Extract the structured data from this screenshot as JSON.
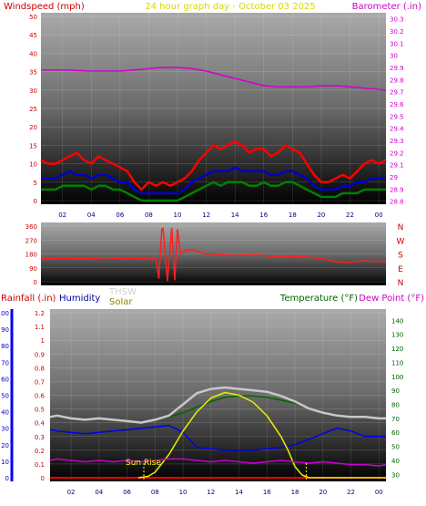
{
  "colors": {
    "wind_gust": "#ff0000",
    "wind_avg": "#0000cc",
    "wind_low": "#008000",
    "barometer": "#d000d0",
    "title": "#e8e800",
    "direction": "#ff2020",
    "rain": "#ff0000",
    "humidity": "#0000ee",
    "solar": "#eeee00",
    "thsw": "#c8c8c8",
    "temperature": "#006600",
    "dew_point": "#cc00cc",
    "sunrise_marker": "#ffff00"
  },
  "chart_data": [
    {
      "type": "line",
      "panel": "wind-barometer",
      "title": "24 hour graph day - October 03 2025",
      "left_axis_label": "Windspeed (mph)",
      "right_axis_label": "Barometer (.in)",
      "x_ticks": [
        "02",
        "04",
        "06",
        "08",
        "10",
        "12",
        "14",
        "16",
        "18",
        "20",
        "22",
        "00"
      ],
      "left_ticks": [
        "0",
        "5",
        "10",
        "15",
        "20",
        "25",
        "30",
        "35",
        "40",
        "45",
        "50"
      ],
      "right_ticks": [
        "28.8",
        "28.9",
        "29",
        "29.1",
        "29.2",
        "29.3",
        "29.4",
        "29.5",
        "29.6",
        "29.7",
        "29.8",
        "29.9",
        "30",
        "30.1",
        "30.2",
        "30.3"
      ],
      "left_range": [
        0,
        50
      ],
      "right_range": [
        28.775,
        30.35
      ],
      "x_range": [
        0.5,
        24.5
      ],
      "grid": true,
      "series": [
        {
          "name": "Windspeed gust",
          "color_key": "wind_gust",
          "x": [
            0.5,
            1,
            1.5,
            2,
            2.5,
            3,
            3.5,
            4,
            4.5,
            5,
            5.5,
            6,
            6.5,
            7,
            7.5,
            8,
            8.5,
            9,
            9.5,
            10,
            10.5,
            11,
            11.5,
            12,
            12.5,
            13,
            13.5,
            14,
            14.5,
            15,
            15.5,
            16,
            16.5,
            17,
            17.5,
            18,
            18.5,
            19,
            19.5,
            20,
            20.5,
            21,
            21.5,
            22,
            22.5,
            23,
            23.5,
            24,
            24.5
          ],
          "values": [
            11,
            10,
            10,
            11,
            12,
            13,
            11,
            10,
            12,
            11,
            10,
            9,
            8,
            5,
            3,
            5,
            4,
            5,
            4,
            5,
            6,
            8,
            11,
            13,
            15,
            14,
            15,
            16,
            15,
            13,
            14,
            14,
            12,
            13,
            15,
            14,
            13,
            10,
            7,
            5,
            5,
            6,
            7,
            6,
            8,
            10,
            11,
            10,
            11
          ]
        },
        {
          "name": "Windspeed average",
          "color_key": "wind_avg",
          "x": [
            0.5,
            1,
            1.5,
            2,
            2.5,
            3,
            3.5,
            4,
            4.5,
            5,
            5.5,
            6,
            6.5,
            7,
            7.5,
            8,
            8.5,
            9,
            9.5,
            10,
            10.5,
            11,
            11.5,
            12,
            12.5,
            13,
            13.5,
            14,
            14.5,
            15,
            15.5,
            16,
            16.5,
            17,
            17.5,
            18,
            18.5,
            19,
            19.5,
            20,
            20.5,
            21,
            21.5,
            22,
            22.5,
            23,
            23.5,
            24,
            24.5
          ],
          "values": [
            6,
            6,
            6,
            7,
            8,
            7,
            7,
            6,
            7,
            7,
            6,
            5,
            5,
            3,
            2,
            2,
            2,
            2,
            2,
            2,
            3,
            5,
            6,
            7,
            8,
            8,
            8,
            9,
            8,
            8,
            8,
            8,
            7,
            7,
            8,
            8,
            7,
            6,
            4,
            3,
            3,
            3,
            4,
            4,
            5,
            5,
            6,
            6,
            6
          ]
        },
        {
          "name": "Windspeed low",
          "color_key": "wind_low",
          "x": [
            0.5,
            1,
            1.5,
            2,
            2.5,
            3,
            3.5,
            4,
            4.5,
            5,
            5.5,
            6,
            6.5,
            7,
            7.5,
            8,
            8.5,
            9,
            9.5,
            10,
            10.5,
            11,
            11.5,
            12,
            12.5,
            13,
            13.5,
            14,
            14.5,
            15,
            15.5,
            16,
            16.5,
            17,
            17.5,
            18,
            18.5,
            19,
            19.5,
            20,
            20.5,
            21,
            21.5,
            22,
            22.5,
            23,
            23.5,
            24,
            24.5
          ],
          "values": [
            3,
            3,
            3,
            4,
            4,
            4,
            4,
            3,
            4,
            4,
            3,
            3,
            2,
            1,
            0,
            0,
            0,
            0,
            0,
            0,
            1,
            2,
            3,
            4,
            5,
            4,
            5,
            5,
            5,
            4,
            4,
            5,
            4,
            4,
            5,
            5,
            4,
            3,
            2,
            1,
            1,
            1,
            2,
            2,
            2,
            3,
            3,
            3,
            3
          ]
        },
        {
          "name": "Barometer",
          "color_key": "barometer",
          "axis": "right",
          "x": [
            0.5,
            2,
            4,
            6,
            7,
            8,
            9,
            10,
            11,
            12,
            13,
            14,
            15,
            16,
            17,
            18,
            19,
            20,
            21,
            22,
            23,
            24,
            24.5
          ],
          "values": [
            29.88,
            29.88,
            29.87,
            29.87,
            29.88,
            29.89,
            29.9,
            29.9,
            29.89,
            29.87,
            29.84,
            29.81,
            29.78,
            29.75,
            29.74,
            29.74,
            29.74,
            29.75,
            29.75,
            29.74,
            29.73,
            29.72,
            29.71
          ]
        }
      ]
    },
    {
      "type": "line",
      "panel": "wind-direction",
      "left_ticks": [
        "0",
        "90",
        "180",
        "270",
        "360"
      ],
      "right_ticks": [
        "N",
        "E",
        "S",
        "W",
        "N"
      ],
      "y_range": [
        0,
        360
      ],
      "x_range": [
        0.5,
        24.5
      ],
      "grid": true,
      "series": [
        {
          "name": "Wind direction",
          "color_key": "direction",
          "x": [
            0.5,
            1,
            2,
            3,
            4,
            5,
            6,
            7,
            7.5,
            8,
            8.5,
            8.7,
            8.9,
            9,
            9.3,
            9.6,
            9.8,
            10,
            10.2,
            10.5,
            11,
            11.5,
            12,
            13,
            14,
            15,
            16,
            17,
            18,
            19,
            20,
            21,
            22,
            23,
            24,
            24.5
          ],
          "values": [
            150,
            148,
            152,
            150,
            150,
            155,
            150,
            152,
            150,
            150,
            150,
            20,
            340,
            345,
            5,
            350,
            10,
            340,
            180,
            200,
            210,
            190,
            180,
            175,
            170,
            175,
            170,
            160,
            165,
            160,
            150,
            130,
            125,
            135,
            130,
            130
          ]
        }
      ]
    },
    {
      "type": "line",
      "panel": "rain-humidity-solar-temperature",
      "labels": {
        "rainfall": "Rainfall (.in)",
        "humidity": "Humidity",
        "thsw": "THSW",
        "solar": "Solar",
        "temperature": "Temperature (°F)",
        "dew_point": "Dew Point (°F)",
        "sunrise": "Sun Rise"
      },
      "x_ticks": [
        "02",
        "04",
        "06",
        "08",
        "10",
        "12",
        "14",
        "16",
        "18",
        "20",
        "22",
        "00"
      ],
      "humidity_ticks": [
        "0",
        "10",
        "20",
        "30",
        "40",
        "50",
        "60",
        "70",
        "80",
        "90",
        "100"
      ],
      "rain_ticks": [
        "0",
        "0.1",
        "0.2",
        "0.3",
        "0.4",
        "0.5",
        "0.6",
        "0.7",
        "0.8",
        "0.9",
        "1",
        "1.1",
        "1.2"
      ],
      "temperature_ticks": [
        "30",
        "40",
        "50",
        "60",
        "70",
        "80",
        "90",
        "100",
        "110",
        "120",
        "130",
        "140"
      ],
      "rain_range": [
        0,
        1.2
      ],
      "temperature_range": [
        25,
        148
      ],
      "x_range": [
        0.5,
        24.5
      ],
      "grid": true,
      "series": [
        {
          "name": "Temperature",
          "color_key": "temperature",
          "axis": "temperature",
          "x": [
            0.5,
            1,
            2,
            3,
            4,
            5,
            6,
            7,
            8,
            9,
            10,
            11,
            12,
            13,
            14,
            15,
            16,
            17,
            18,
            19,
            20,
            21,
            22,
            23,
            24,
            24.5
          ],
          "values": [
            71,
            72,
            70,
            69,
            70,
            69,
            68,
            67,
            69,
            71,
            74,
            78,
            82,
            85,
            86,
            86,
            85,
            83,
            81,
            77,
            74,
            72,
            71,
            71,
            70,
            70
          ]
        },
        {
          "name": "THSW",
          "color_key": "thsw",
          "axis": "temperature",
          "x": [
            0.5,
            1,
            2,
            3,
            4,
            5,
            6,
            7,
            8,
            9,
            10,
            11,
            12,
            13,
            14,
            15,
            16,
            17,
            18,
            19,
            20,
            21,
            22,
            23,
            24,
            24.5
          ],
          "values": [
            71,
            72,
            70,
            69,
            70,
            69,
            68,
            67,
            69,
            72,
            80,
            88,
            91,
            92,
            91,
            90,
            89,
            86,
            82,
            77,
            74,
            72,
            71,
            71,
            70,
            70
          ]
        },
        {
          "name": "Humidity",
          "color_key": "humidity",
          "axis": "rain",
          "x": [
            0.5,
            1,
            2,
            3,
            4,
            5,
            6,
            7,
            8,
            9,
            10,
            11,
            12,
            13,
            14,
            15,
            16,
            17,
            18,
            19,
            20,
            21,
            22,
            23,
            24,
            24.5
          ],
          "values": [
            0.35,
            0.34,
            0.33,
            0.32,
            0.33,
            0.34,
            0.35,
            0.36,
            0.37,
            0.38,
            0.33,
            0.22,
            0.21,
            0.2,
            0.2,
            0.2,
            0.21,
            0.22,
            0.24,
            0.28,
            0.32,
            0.36,
            0.34,
            0.3,
            0.3,
            0.3
          ]
        },
        {
          "name": "Solar",
          "color_key": "solar",
          "axis": "rain",
          "x": [
            6.8,
            7.5,
            8,
            9,
            10,
            11,
            12,
            13,
            14,
            15,
            16,
            17,
            17.5,
            18,
            18.5,
            19,
            24.5
          ],
          "values": [
            0,
            0.01,
            0.04,
            0.17,
            0.34,
            0.48,
            0.58,
            0.62,
            0.6,
            0.55,
            0.45,
            0.3,
            0.2,
            0.08,
            0.02,
            0,
            0
          ]
        },
        {
          "name": "Dew Point",
          "color_key": "dew_point",
          "axis": "temperature",
          "x": [
            0.5,
            1,
            2,
            3,
            4,
            5,
            6,
            7,
            8,
            9,
            10,
            11,
            12,
            13,
            14,
            15,
            16,
            17,
            18,
            19,
            20,
            21,
            22,
            23,
            24,
            24.5
          ],
          "values": [
            40,
            41,
            40,
            39,
            40,
            39,
            40,
            39,
            40,
            41,
            41,
            40,
            39,
            40,
            39,
            38,
            39,
            40,
            39,
            38,
            39,
            38,
            37,
            37,
            36,
            37
          ]
        }
      ],
      "sunrise_hour": 7.2,
      "sunset_hour": 18.8
    }
  ]
}
